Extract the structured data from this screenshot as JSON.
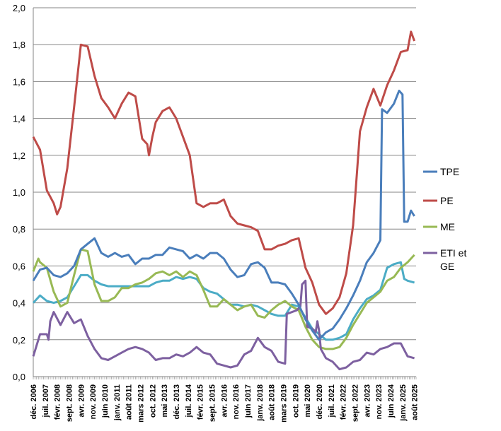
{
  "chart_data": {
    "type": "line",
    "title": "",
    "xlabel": "",
    "ylabel": "",
    "ylim": [
      0,
      2.0
    ],
    "yticks": [
      "0,0",
      "0,2",
      "0,4",
      "0,6",
      "0,8",
      "1,0",
      "1,2",
      "1,4",
      "1,6",
      "1,8",
      "2,0"
    ],
    "ytick_values": [
      0,
      0.2,
      0.4,
      0.6,
      0.8,
      1.0,
      1.2,
      1.4,
      1.6,
      1.8,
      2.0
    ],
    "x_range_months": [
      0,
      225
    ],
    "xtick_step_months": 7,
    "xticks": [
      "déc. 2006",
      "juil. 2007",
      "févr. 2008",
      "sept. 2008",
      "avr. 2009",
      "nov. 2009",
      "juin 2010",
      "janv. 2011",
      "août 2011",
      "mars 2012",
      "oct. 2012",
      "mai 2013",
      "déc. 2013",
      "juil. 2014",
      "févr. 2015",
      "sept. 2015",
      "avr. 2016",
      "nov. 2016",
      "juin 2017",
      "janv. 2018",
      "août 2018",
      "mars 2019",
      "oct. 2019",
      "mai 2020",
      "déc. 2020",
      "juil. 2021",
      "févr. 2022",
      "sept. 2022",
      "avr. 2023",
      "nov. 2023",
      "juin 2024",
      "janv. 2025",
      "août 2025"
    ],
    "grid": true,
    "legend_position": "right",
    "series": [
      {
        "name": "TPE",
        "color": "#4a7ebb",
        "in_legend": true,
        "points": [
          [
            0,
            0.52
          ],
          [
            4,
            0.58
          ],
          [
            8,
            0.59
          ],
          [
            12,
            0.55
          ],
          [
            16,
            0.54
          ],
          [
            20,
            0.56
          ],
          [
            24,
            0.6
          ],
          [
            28,
            0.69
          ],
          [
            32,
            0.72
          ],
          [
            36,
            0.75
          ],
          [
            40,
            0.67
          ],
          [
            44,
            0.65
          ],
          [
            48,
            0.67
          ],
          [
            52,
            0.65
          ],
          [
            56,
            0.66
          ],
          [
            60,
            0.61
          ],
          [
            64,
            0.64
          ],
          [
            68,
            0.64
          ],
          [
            72,
            0.66
          ],
          [
            76,
            0.66
          ],
          [
            80,
            0.7
          ],
          [
            84,
            0.69
          ],
          [
            88,
            0.68
          ],
          [
            92,
            0.64
          ],
          [
            96,
            0.66
          ],
          [
            100,
            0.64
          ],
          [
            104,
            0.67
          ],
          [
            108,
            0.67
          ],
          [
            112,
            0.64
          ],
          [
            116,
            0.58
          ],
          [
            120,
            0.54
          ],
          [
            124,
            0.55
          ],
          [
            128,
            0.61
          ],
          [
            132,
            0.62
          ],
          [
            136,
            0.59
          ],
          [
            140,
            0.51
          ],
          [
            144,
            0.51
          ],
          [
            148,
            0.5
          ],
          [
            152,
            0.45
          ],
          [
            156,
            0.39
          ],
          [
            160,
            0.31
          ],
          [
            164,
            0.25
          ],
          [
            168,
            0.2
          ],
          [
            172,
            0.24
          ],
          [
            176,
            0.26
          ],
          [
            180,
            0.31
          ],
          [
            184,
            0.37
          ],
          [
            188,
            0.44
          ],
          [
            192,
            0.52
          ],
          [
            196,
            0.62
          ],
          [
            200,
            0.67
          ],
          [
            204,
            0.74
          ],
          [
            205,
            1.45
          ],
          [
            208,
            1.43
          ],
          [
            212,
            1.48
          ],
          [
            215,
            1.55
          ],
          [
            217,
            1.53
          ],
          [
            218,
            0.84
          ],
          [
            220,
            0.84
          ],
          [
            222,
            0.9
          ],
          [
            224,
            0.87
          ]
        ]
      },
      {
        "name": "PE",
        "color": "#be4b48",
        "in_legend": true,
        "points": [
          [
            0,
            1.3
          ],
          [
            4,
            1.23
          ],
          [
            8,
            1.01
          ],
          [
            12,
            0.94
          ],
          [
            14,
            0.88
          ],
          [
            16,
            0.92
          ],
          [
            20,
            1.13
          ],
          [
            24,
            1.46
          ],
          [
            28,
            1.8
          ],
          [
            32,
            1.79
          ],
          [
            36,
            1.63
          ],
          [
            40,
            1.51
          ],
          [
            44,
            1.46
          ],
          [
            48,
            1.4
          ],
          [
            52,
            1.48
          ],
          [
            56,
            1.54
          ],
          [
            60,
            1.52
          ],
          [
            64,
            1.29
          ],
          [
            67,
            1.26
          ],
          [
            68,
            1.2
          ],
          [
            70,
            1.3
          ],
          [
            72,
            1.38
          ],
          [
            76,
            1.44
          ],
          [
            80,
            1.46
          ],
          [
            84,
            1.4
          ],
          [
            88,
            1.3
          ],
          [
            92,
            1.2
          ],
          [
            96,
            0.94
          ],
          [
            100,
            0.92
          ],
          [
            104,
            0.94
          ],
          [
            108,
            0.94
          ],
          [
            112,
            0.96
          ],
          [
            116,
            0.87
          ],
          [
            120,
            0.83
          ],
          [
            124,
            0.82
          ],
          [
            128,
            0.81
          ],
          [
            132,
            0.79
          ],
          [
            136,
            0.69
          ],
          [
            140,
            0.69
          ],
          [
            144,
            0.71
          ],
          [
            148,
            0.72
          ],
          [
            152,
            0.74
          ],
          [
            156,
            0.75
          ],
          [
            160,
            0.59
          ],
          [
            164,
            0.51
          ],
          [
            168,
            0.39
          ],
          [
            172,
            0.34
          ],
          [
            176,
            0.37
          ],
          [
            180,
            0.43
          ],
          [
            184,
            0.56
          ],
          [
            188,
            0.82
          ],
          [
            192,
            1.33
          ],
          [
            196,
            1.46
          ],
          [
            200,
            1.56
          ],
          [
            204,
            1.47
          ],
          [
            208,
            1.58
          ],
          [
            212,
            1.66
          ],
          [
            216,
            1.76
          ],
          [
            220,
            1.77
          ],
          [
            222,
            1.87
          ],
          [
            224,
            1.82
          ]
        ]
      },
      {
        "name": "ME",
        "color": "#98b954",
        "in_legend": true,
        "points": [
          [
            0,
            0.57
          ],
          [
            3,
            0.64
          ],
          [
            4,
            0.62
          ],
          [
            8,
            0.59
          ],
          [
            12,
            0.46
          ],
          [
            16,
            0.38
          ],
          [
            20,
            0.4
          ],
          [
            24,
            0.55
          ],
          [
            28,
            0.69
          ],
          [
            32,
            0.68
          ],
          [
            36,
            0.5
          ],
          [
            40,
            0.41
          ],
          [
            44,
            0.41
          ],
          [
            48,
            0.43
          ],
          [
            52,
            0.48
          ],
          [
            56,
            0.48
          ],
          [
            60,
            0.5
          ],
          [
            64,
            0.51
          ],
          [
            68,
            0.53
          ],
          [
            72,
            0.56
          ],
          [
            76,
            0.57
          ],
          [
            80,
            0.55
          ],
          [
            84,
            0.57
          ],
          [
            88,
            0.54
          ],
          [
            92,
            0.57
          ],
          [
            96,
            0.55
          ],
          [
            100,
            0.47
          ],
          [
            104,
            0.38
          ],
          [
            108,
            0.38
          ],
          [
            112,
            0.42
          ],
          [
            116,
            0.39
          ],
          [
            120,
            0.36
          ],
          [
            124,
            0.38
          ],
          [
            128,
            0.39
          ],
          [
            132,
            0.33
          ],
          [
            136,
            0.32
          ],
          [
            140,
            0.36
          ],
          [
            144,
            0.39
          ],
          [
            148,
            0.41
          ],
          [
            152,
            0.38
          ],
          [
            156,
            0.36
          ],
          [
            160,
            0.27
          ],
          [
            164,
            0.2
          ],
          [
            168,
            0.16
          ],
          [
            172,
            0.15
          ],
          [
            176,
            0.15
          ],
          [
            180,
            0.16
          ],
          [
            184,
            0.21
          ],
          [
            188,
            0.28
          ],
          [
            192,
            0.34
          ],
          [
            196,
            0.4
          ],
          [
            200,
            0.43
          ],
          [
            204,
            0.46
          ],
          [
            208,
            0.52
          ],
          [
            212,
            0.54
          ],
          [
            216,
            0.59
          ],
          [
            220,
            0.62
          ],
          [
            224,
            0.66
          ]
        ]
      },
      {
        "name": "",
        "color": "#4bacc6",
        "in_legend": false,
        "points": [
          [
            0,
            0.4
          ],
          [
            4,
            0.44
          ],
          [
            8,
            0.41
          ],
          [
            12,
            0.4
          ],
          [
            16,
            0.41
          ],
          [
            20,
            0.43
          ],
          [
            24,
            0.49
          ],
          [
            28,
            0.55
          ],
          [
            32,
            0.55
          ],
          [
            36,
            0.52
          ],
          [
            40,
            0.5
          ],
          [
            44,
            0.49
          ],
          [
            48,
            0.49
          ],
          [
            52,
            0.49
          ],
          [
            56,
            0.49
          ],
          [
            60,
            0.49
          ],
          [
            64,
            0.49
          ],
          [
            68,
            0.49
          ],
          [
            72,
            0.51
          ],
          [
            76,
            0.52
          ],
          [
            80,
            0.52
          ],
          [
            84,
            0.54
          ],
          [
            88,
            0.53
          ],
          [
            92,
            0.54
          ],
          [
            96,
            0.53
          ],
          [
            100,
            0.48
          ],
          [
            104,
            0.46
          ],
          [
            108,
            0.45
          ],
          [
            112,
            0.42
          ],
          [
            116,
            0.39
          ],
          [
            120,
            0.39
          ],
          [
            124,
            0.38
          ],
          [
            128,
            0.39
          ],
          [
            132,
            0.38
          ],
          [
            136,
            0.36
          ],
          [
            140,
            0.34
          ],
          [
            144,
            0.33
          ],
          [
            148,
            0.33
          ],
          [
            152,
            0.39
          ],
          [
            156,
            0.38
          ],
          [
            160,
            0.32
          ],
          [
            164,
            0.26
          ],
          [
            168,
            0.23
          ],
          [
            172,
            0.2
          ],
          [
            176,
            0.2
          ],
          [
            180,
            0.21
          ],
          [
            184,
            0.23
          ],
          [
            188,
            0.31
          ],
          [
            192,
            0.37
          ],
          [
            196,
            0.42
          ],
          [
            200,
            0.44
          ],
          [
            204,
            0.47
          ],
          [
            208,
            0.59
          ],
          [
            212,
            0.61
          ],
          [
            216,
            0.62
          ],
          [
            218,
            0.53
          ],
          [
            220,
            0.52
          ],
          [
            224,
            0.51
          ]
        ]
      },
      {
        "name": "ETI et GE",
        "color": "#7d60a0",
        "in_legend": true,
        "points": [
          [
            0,
            0.11
          ],
          [
            4,
            0.23
          ],
          [
            8,
            0.23
          ],
          [
            9,
            0.2
          ],
          [
            10,
            0.3
          ],
          [
            12,
            0.35
          ],
          [
            16,
            0.28
          ],
          [
            20,
            0.35
          ],
          [
            24,
            0.29
          ],
          [
            28,
            0.31
          ],
          [
            32,
            0.22
          ],
          [
            36,
            0.15
          ],
          [
            40,
            0.1
          ],
          [
            44,
            0.09
          ],
          [
            48,
            0.11
          ],
          [
            52,
            0.13
          ],
          [
            56,
            0.15
          ],
          [
            60,
            0.16
          ],
          [
            64,
            0.15
          ],
          [
            68,
            0.13
          ],
          [
            72,
            0.09
          ],
          [
            76,
            0.1
          ],
          [
            80,
            0.1
          ],
          [
            84,
            0.12
          ],
          [
            88,
            0.11
          ],
          [
            92,
            0.13
          ],
          [
            96,
            0.16
          ],
          [
            100,
            0.13
          ],
          [
            104,
            0.12
          ],
          [
            108,
            0.07
          ],
          [
            112,
            0.06
          ],
          [
            116,
            0.05
          ],
          [
            120,
            0.06
          ],
          [
            124,
            0.12
          ],
          [
            128,
            0.14
          ],
          [
            132,
            0.21
          ],
          [
            136,
            0.16
          ],
          [
            140,
            0.14
          ],
          [
            144,
            0.08
          ],
          [
            148,
            0.07
          ],
          [
            149,
            0.34
          ],
          [
            155,
            0.36
          ],
          [
            157,
            0.38
          ],
          [
            158,
            0.5
          ],
          [
            160,
            0.52
          ],
          [
            161,
            0.27
          ],
          [
            164,
            0.26
          ],
          [
            166,
            0.24
          ],
          [
            167,
            0.3
          ],
          [
            168,
            0.25
          ],
          [
            169,
            0.15
          ],
          [
            172,
            0.1
          ],
          [
            176,
            0.08
          ],
          [
            180,
            0.04
          ],
          [
            184,
            0.05
          ],
          [
            188,
            0.08
          ],
          [
            192,
            0.09
          ],
          [
            196,
            0.13
          ],
          [
            200,
            0.12
          ],
          [
            204,
            0.15
          ],
          [
            208,
            0.16
          ],
          [
            212,
            0.18
          ],
          [
            216,
            0.18
          ],
          [
            220,
            0.11
          ],
          [
            224,
            0.1
          ]
        ]
      }
    ]
  }
}
